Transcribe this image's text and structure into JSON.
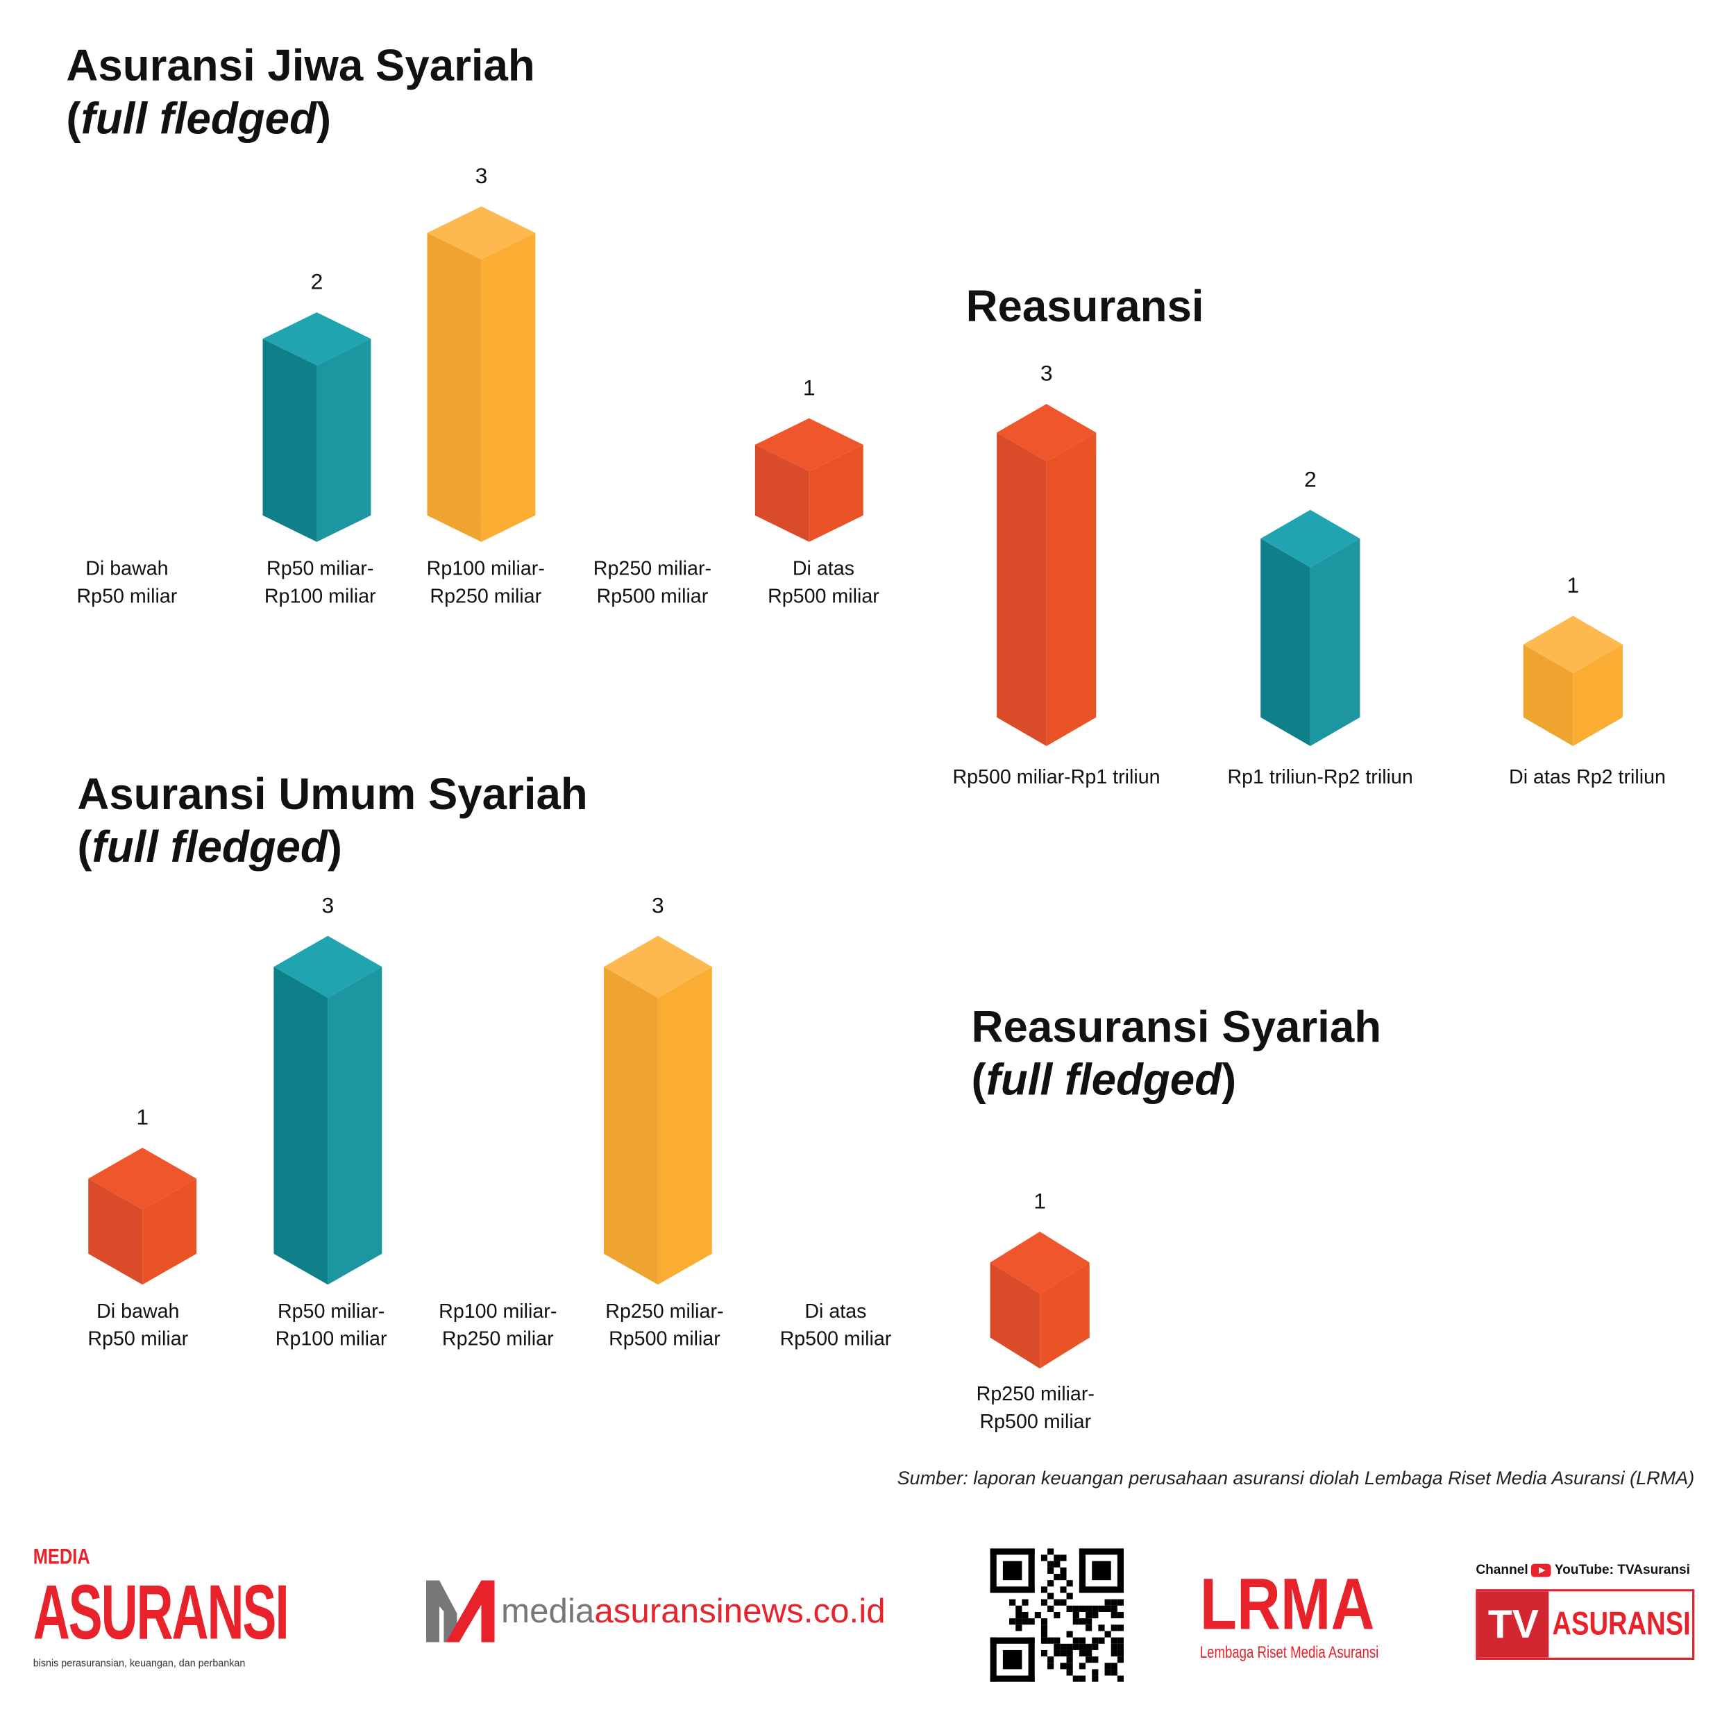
{
  "colors": {
    "teal": {
      "top": "#20a4b0",
      "left": "#0f7f8a",
      "right": "#1c96a1"
    },
    "orange": {
      "top": "#fdb84f",
      "left": "#efa42f",
      "right": "#fbad33"
    },
    "red": {
      "top": "#f0562b",
      "left": "#d94b29",
      "right": "#e95326"
    }
  },
  "chart_data": [
    {
      "type": "bar",
      "title": "Asuransi Jiwa Syariah",
      "subtitle": "full fledged",
      "categories": [
        [
          "Di bawah",
          "Rp50 miliar"
        ],
        [
          "Rp50 miliar-",
          "Rp100 miliar"
        ],
        [
          "Rp100 miliar-",
          "Rp250 miliar"
        ],
        [
          "Rp250 miliar-",
          "Rp500 miliar"
        ],
        [
          "Di atas",
          "Rp500 miliar"
        ]
      ],
      "values": [
        null,
        2,
        3,
        null,
        1
      ],
      "colors": [
        null,
        "teal",
        "orange",
        null,
        "red"
      ],
      "value_labels": [
        "",
        "2",
        "3",
        "",
        "1"
      ]
    },
    {
      "type": "bar",
      "title": "Reasuransi",
      "subtitle": "",
      "categories": [
        [
          "Rp500 miliar-Rp1 triliun"
        ],
        [
          "Rp1 triliun-Rp2 triliun"
        ],
        [
          "Di atas Rp2 triliun"
        ]
      ],
      "values": [
        3,
        2,
        1
      ],
      "colors": [
        "red",
        "teal",
        "orange"
      ],
      "value_labels": [
        "3",
        "2",
        "1"
      ]
    },
    {
      "type": "bar",
      "title": "Asuransi Umum Syariah",
      "subtitle": "full fledged",
      "categories": [
        [
          "Di bawah",
          "Rp50 miliar"
        ],
        [
          "Rp50 miliar-",
          "Rp100 miliar"
        ],
        [
          "Rp100 miliar-",
          "Rp250 miliar"
        ],
        [
          "Rp250 miliar-",
          "Rp500 miliar"
        ],
        [
          "Di atas",
          "Rp500 miliar"
        ]
      ],
      "values": [
        1,
        3,
        null,
        3,
        null
      ],
      "colors": [
        "red",
        "teal",
        null,
        "orange",
        null
      ],
      "value_labels": [
        "1",
        "3",
        "",
        "3",
        ""
      ]
    },
    {
      "type": "bar",
      "title": "Reasuransi Syariah",
      "subtitle": "full fledged",
      "categories": [
        [
          "Rp250 miliar-",
          "Rp500 miliar"
        ]
      ],
      "values": [
        1
      ],
      "colors": [
        "red"
      ],
      "value_labels": [
        "1"
      ]
    }
  ],
  "source": "Sumber: laporan keuangan perusahaan asuransi diolah Lembaga Riset Media Asuransi (LRMA)",
  "footer": {
    "media_top": "MEDIA",
    "media_main": "ASURANSI",
    "media_tagline": "bisnis perasuransian, keuangan, dan perbankan",
    "web_a": "media",
    "web_b": "asuransinews.co.id",
    "lrma": "LRMA",
    "lrma_sub": "Lembaga Riset Media Asuransi",
    "channel": "Channel",
    "youtube": "YouTube: TVAsuransi",
    "tv": "TV",
    "tv_name": "ASURANSI"
  }
}
